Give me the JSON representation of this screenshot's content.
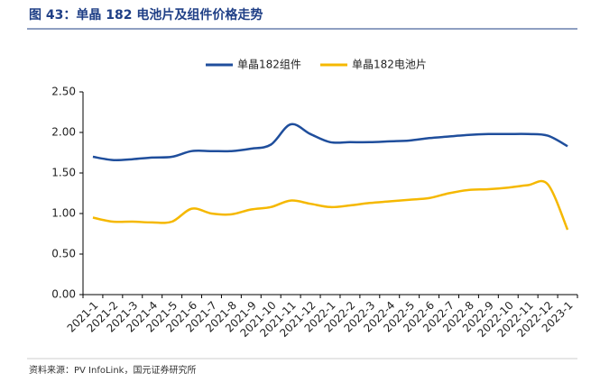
{
  "chart_data": {
    "type": "line",
    "title": "图 43：单晶 182 电池片及组件价格走势",
    "source": "资料来源：PV InfoLink，国元证券研究所",
    "categories": [
      "2021-1",
      "2021-2",
      "2021-3",
      "2021-4",
      "2021-5",
      "2021-6",
      "2021-7",
      "2021-8",
      "2021-9",
      "2021-10",
      "2021-11",
      "2021-12",
      "2022-1",
      "2022-2",
      "2022-3",
      "2022-4",
      "2022-5",
      "2022-6",
      "2022-7",
      "2022-8",
      "2022-9",
      "2022-10",
      "2022-11",
      "2022-12",
      "2023-1"
    ],
    "series": [
      {
        "name": "单晶182组件",
        "color": "#1f4e9c",
        "values": [
          1.7,
          1.66,
          1.67,
          1.69,
          1.7,
          1.77,
          1.77,
          1.77,
          1.8,
          1.85,
          2.1,
          1.98,
          1.88,
          1.88,
          1.88,
          1.89,
          1.9,
          1.93,
          1.95,
          1.97,
          1.98,
          1.98,
          1.98,
          1.96,
          1.83
        ]
      },
      {
        "name": "单晶182电池片",
        "color": "#f5b800",
        "values": [
          0.95,
          0.9,
          0.9,
          0.89,
          0.9,
          1.06,
          1.0,
          0.99,
          1.05,
          1.08,
          1.16,
          1.12,
          1.08,
          1.1,
          1.13,
          1.15,
          1.17,
          1.19,
          1.25,
          1.29,
          1.3,
          1.32,
          1.35,
          1.36,
          0.8
        ]
      }
    ],
    "ylim": [
      0,
      2.5
    ],
    "yticks": [
      {
        "value": 0,
        "label": "0.00"
      },
      {
        "value": 0.5,
        "label": "0.50"
      },
      {
        "value": 1,
        "label": "1.00"
      },
      {
        "value": 1.5,
        "label": "1.50"
      },
      {
        "value": 2,
        "label": "2.00"
      },
      {
        "value": 2.5,
        "label": "2.50"
      }
    ],
    "legend": "top"
  }
}
